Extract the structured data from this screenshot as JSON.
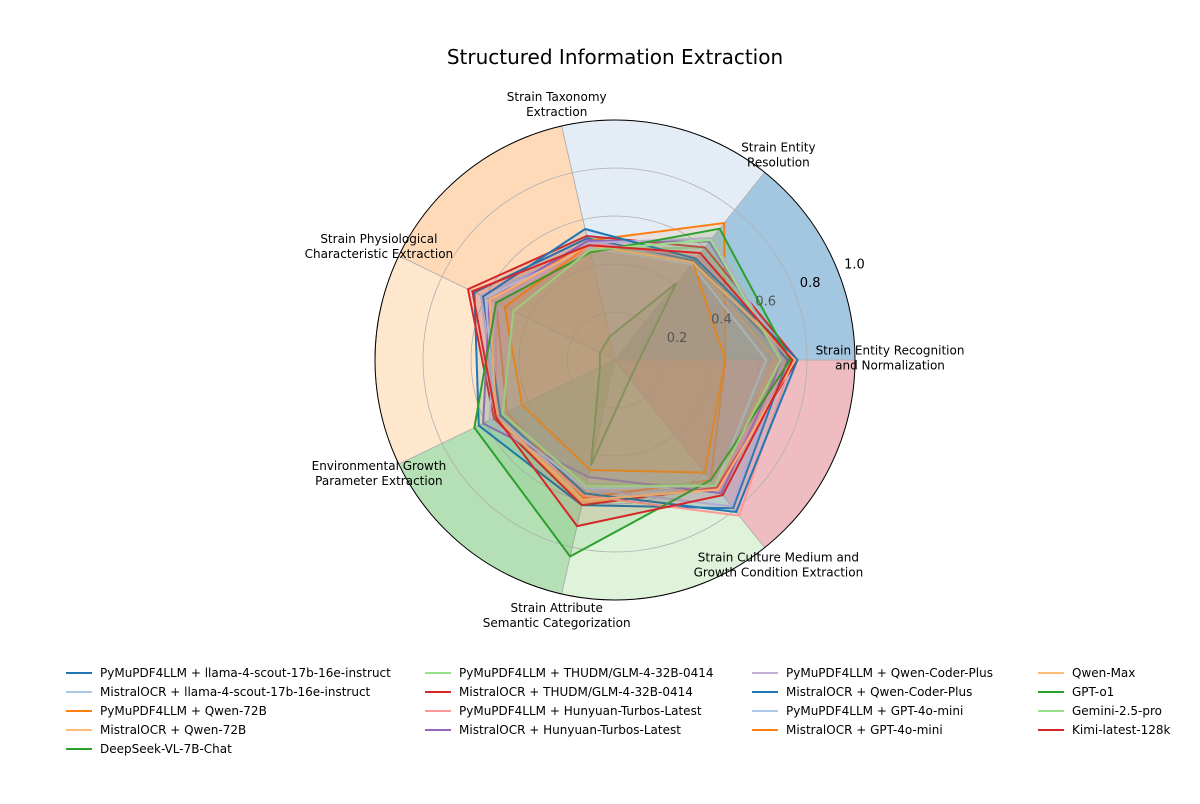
{
  "chart_data": {
    "type": "radar",
    "title": "Structured Information Extraction",
    "rlim": [
      0,
      1.0
    ],
    "rticks": [
      0.2,
      0.4,
      0.6,
      0.8,
      1.0
    ],
    "rtick_labels": [
      "0.2",
      "0.4",
      "0.6",
      "0.8",
      "1.0"
    ],
    "grid": true,
    "legend_position": "bottom",
    "categories": [
      "Strain Entity Recognition\nand Normalization",
      "Strain Entity\nResolution",
      "Strain Taxonomy\nExtraction",
      "Strain Physiological\nCharacteristic Extraction",
      "Environmental Growth\nParameter Extraction",
      "Strain Attribute\nSemantic Categorization",
      "Strain Culture Medium and\nGrowth Condition Extraction"
    ],
    "sector_colors": [
      "#4a90c4",
      "#c9d9ee",
      "#fdb571",
      "#fdcf9c",
      "#6cbf6c",
      "#bde8b5",
      "#e07b84"
    ],
    "series": [
      {
        "name": "PyMuPDF4LLM + llama-4-scout-17b-16e-instruct",
        "color": "#1f77b4",
        "values": [
          0.72,
          0.53,
          0.52,
          0.65,
          0.63,
          0.62,
          0.79
        ]
      },
      {
        "name": "MistralOCR + llama-4-scout-17b-16e-instruct",
        "color": "#aec7e8",
        "values": [
          0.64,
          0.52,
          0.48,
          0.62,
          0.55,
          0.57,
          0.68
        ]
      },
      {
        "name": "PyMuPDF4LLM + Qwen-72B",
        "color": "#ff7f0e",
        "values": [
          0.46,
          0.73,
          0.51,
          0.55,
          0.5,
          0.59,
          0.64
        ]
      },
      {
        "name": "MistralOCR + Qwen-72B",
        "color": "#ffbb78",
        "values": [
          0.67,
          0.52,
          0.48,
          0.58,
          0.55,
          0.61,
          0.68
        ]
      },
      {
        "name": "DeepSeek-VL-7B-Chat",
        "color": "#2ca02c",
        "values": [
          0.1,
          0.41,
          0.1,
          0.07,
          0.07,
          0.45,
          0.1
        ]
      },
      {
        "name": "PyMuPDF4LLM + THUDM/GLM-4-32B-0414",
        "color": "#98df8a",
        "values": [
          0.7,
          0.6,
          0.47,
          0.47,
          0.52,
          0.53,
          0.66
        ]
      },
      {
        "name": "MistralOCR + THUDM/GLM-4-32B-0414",
        "color": "#d62728",
        "values": [
          0.76,
          0.6,
          0.53,
          0.68,
          0.56,
          0.62,
          0.68
        ]
      },
      {
        "name": "PyMuPDF4LLM + Hunyuan-Turbos-Latest",
        "color": "#ff9896",
        "values": [
          0.74,
          0.55,
          0.5,
          0.55,
          0.55,
          0.58,
          0.83
        ]
      },
      {
        "name": "MistralOCR + Hunyuan-Turbos-Latest",
        "color": "#9467bd",
        "values": [
          0.7,
          0.63,
          0.51,
          0.58,
          0.61,
          0.5,
          0.71
        ]
      },
      {
        "name": "PyMuPDF4LLM + Qwen-Coder-Plus",
        "color": "#c5b0d5",
        "values": [
          0.7,
          0.65,
          0.5,
          0.55,
          0.58,
          0.55,
          0.78
        ]
      },
      {
        "name": "MistralOCR + Qwen-Coder-Plus",
        "color": "#1f77b4",
        "values": [
          0.76,
          0.54,
          0.56,
          0.61,
          0.53,
          0.57,
          0.81
        ]
      },
      {
        "name": "PyMuPDF4LLM + GPT-4o-mini",
        "color": "#aec7e8",
        "values": [
          0.63,
          0.51,
          0.48,
          0.6,
          0.55,
          0.55,
          0.67
        ]
      },
      {
        "name": "MistralOCR + GPT-4o-mini",
        "color": "#ff7f0e",
        "values": [
          0.46,
          0.52,
          0.49,
          0.51,
          0.43,
          0.47,
          0.6
        ]
      },
      {
        "name": "Qwen-Max",
        "color": "#ffbb78",
        "values": [
          0.75,
          0.52,
          0.49,
          0.58,
          0.55,
          0.6,
          0.69
        ]
      },
      {
        "name": "GPT-o1",
        "color": "#2ca02c",
        "values": [
          0.73,
          0.7,
          0.46,
          0.55,
          0.65,
          0.84,
          0.64
        ]
      },
      {
        "name": "Gemini-2.5-pro",
        "color": "#98df8a",
        "values": [
          0.69,
          0.64,
          0.47,
          0.47,
          0.52,
          0.54,
          0.67
        ]
      },
      {
        "name": "Kimi-latest-128k",
        "color": "#d62728",
        "values": [
          0.74,
          0.57,
          0.49,
          0.66,
          0.55,
          0.71,
          0.72
        ]
      }
    ]
  }
}
